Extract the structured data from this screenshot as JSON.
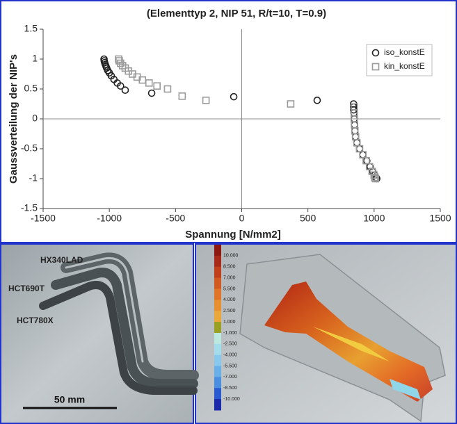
{
  "chart_data": {
    "type": "scatter",
    "title": "(Elementtyp 2, NIP 51, R/t=10, T=0.9)",
    "x_label": "Spannung [N/mm2]",
    "y_label": "Gaussverteilung der NIP's",
    "xlim": [
      -1500,
      1500
    ],
    "xticks": [
      -1500,
      -1000,
      -500,
      0,
      500,
      1000,
      1500
    ],
    "ylim": [
      -1.5,
      1.5
    ],
    "yticks": [
      -1.5,
      -1,
      -0.5,
      0,
      0.5,
      1,
      1.5
    ],
    "legend": "upper right",
    "series": [
      {
        "name": "iso_konstE",
        "color": "#222222",
        "marker": "circle",
        "x": [
          -1040,
          -1038,
          -1035,
          -1030,
          -1025,
          -1020,
          -1012,
          -1000,
          -985,
          -965,
          -940,
          -915,
          -880,
          -680,
          -60,
          570,
          845,
          845,
          845,
          848,
          850,
          852,
          855,
          860,
          870,
          890,
          915,
          945,
          970,
          990,
          1005,
          1015,
          1020
        ],
        "values": [
          1.0,
          0.97,
          0.94,
          0.91,
          0.88,
          0.85,
          0.81,
          0.77,
          0.72,
          0.66,
          0.6,
          0.55,
          0.48,
          0.43,
          0.37,
          0.31,
          0.25,
          0.2,
          0.15,
          0.1,
          0,
          -0.1,
          -0.2,
          -0.3,
          -0.4,
          -0.5,
          -0.6,
          -0.7,
          -0.8,
          -0.88,
          -0.94,
          -0.98,
          -1.0
        ]
      },
      {
        "name": "kin_konstE",
        "color": "#9a9a9a",
        "marker": "square",
        "x": [
          -930,
          -925,
          -915,
          -900,
          -880,
          -855,
          -825,
          -790,
          -750,
          -700,
          -640,
          -560,
          -450,
          -270,
          370,
          850,
          850,
          850,
          852,
          855,
          860,
          870,
          890,
          915,
          940,
          965,
          985,
          1000,
          1005,
          1010
        ],
        "values": [
          1.0,
          0.97,
          0.93,
          0.89,
          0.85,
          0.8,
          0.75,
          0.7,
          0.65,
          0.6,
          0.55,
          0.5,
          0.38,
          0.31,
          0.25,
          0.2,
          0.1,
          0,
          -0.1,
          -0.2,
          -0.3,
          -0.4,
          -0.5,
          -0.6,
          -0.7,
          -0.8,
          -0.88,
          -0.94,
          -0.98,
          -1.0
        ]
      }
    ]
  },
  "photo_left": {
    "labels": [
      "HX340LAD",
      "HCT690T",
      "HCT780X"
    ],
    "scale_bar": "50 mm"
  },
  "photo_right": {
    "colorbar_labels": [
      "10.000",
      "8.500",
      "7.000",
      "5.500",
      "4.000",
      "2.500",
      "1.000",
      "-1.000",
      "-2.500",
      "-4.000",
      "-5.500",
      "-7.000",
      "-8.500",
      "-10.000"
    ]
  }
}
